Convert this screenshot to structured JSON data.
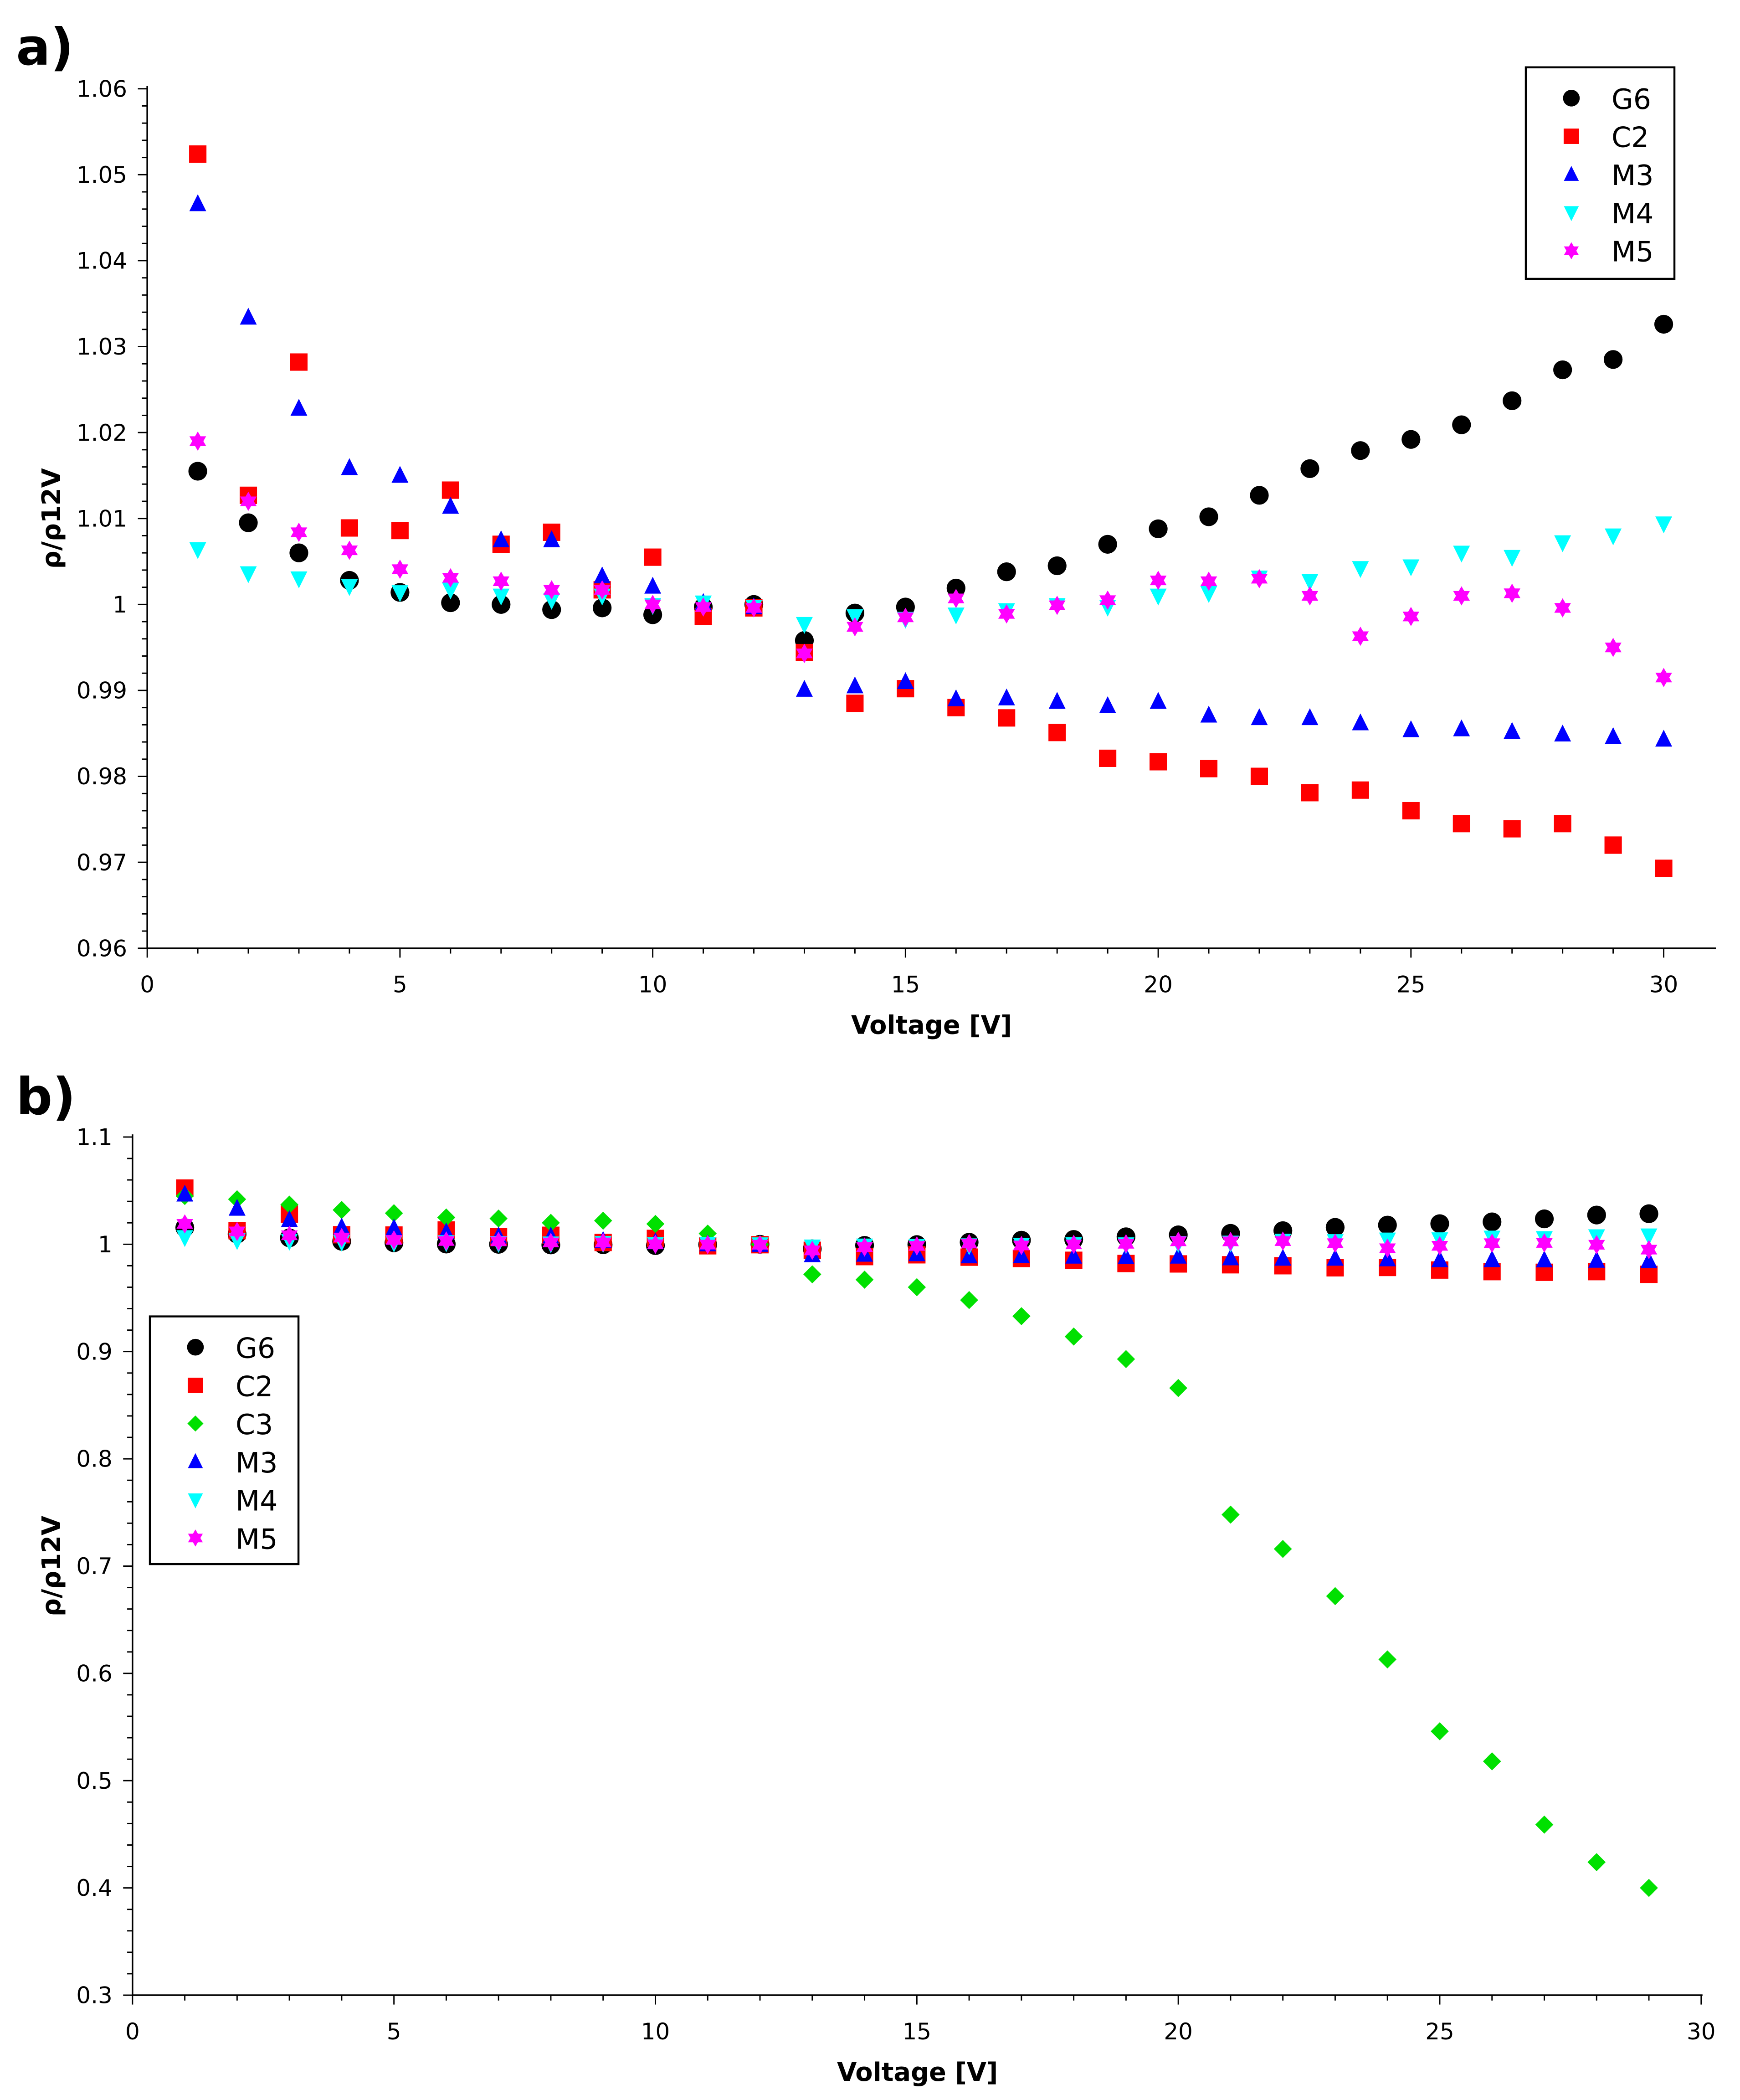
{
  "chart_data": [
    {
      "type": "scatter",
      "panel_label": "a)",
      "xlabel": "Voltage [V]",
      "ylabel": "ρ/ρ12V",
      "xlim": [
        0,
        30
      ],
      "ylim": [
        0.96,
        1.06
      ],
      "xticks": [
        "0",
        "5",
        "10",
        "15",
        "20",
        "25",
        "30"
      ],
      "yticks": [
        "1.06",
        "1.05",
        "1.04",
        "1.03",
        "1.02",
        "1.01",
        "1",
        "0.99",
        "0.98",
        "0.97",
        "0.96"
      ],
      "grid": false,
      "legend_position": "top-right",
      "x": [
        1,
        2,
        3,
        4,
        5,
        6,
        7,
        8,
        9,
        10,
        11,
        12,
        13,
        14,
        15,
        16,
        17,
        18,
        19,
        20,
        21,
        22,
        23,
        24,
        25,
        26,
        27,
        28,
        29,
        30
      ],
      "series": [
        {
          "name": "G6",
          "marker": "circle",
          "color": "#000000",
          "values": [
            1.0155,
            1.0095,
            1.006,
            1.0028,
            1.0014,
            1.0002,
            1.0,
            0.9994,
            0.9996,
            0.9988,
            0.9997,
            1.0,
            0.9958,
            0.999,
            0.9997,
            1.0019,
            1.0038,
            1.0045,
            1.007,
            1.0088,
            1.0102,
            1.0127,
            1.0158,
            1.0179,
            1.0192,
            1.0209,
            1.0237,
            1.0273,
            1.0285,
            1.0326
          ]
        },
        {
          "name": "C2",
          "marker": "square",
          "color": "#ff0000",
          "values": [
            1.0524,
            1.0127,
            1.0282,
            1.0089,
            1.0086,
            1.0133,
            1.007,
            1.0084,
            1.0017,
            1.0055,
            0.9986,
            0.9996,
            0.9944,
            0.9885,
            0.9902,
            0.988,
            0.9868,
            0.9851,
            0.9821,
            0.9817,
            0.9809,
            0.98,
            0.9781,
            0.9784,
            0.976,
            0.9745,
            0.9739,
            0.9745,
            0.972,
            0.9693
          ]
        },
        {
          "name": "M3",
          "marker": "triangle-up",
          "color": "#0000ff",
          "values": [
            1.0466,
            1.0334,
            1.0228,
            1.0159,
            1.015,
            1.0114,
            1.0075,
            1.0075,
            1.0033,
            1.0021,
            1.0002,
            0.9997,
            0.9901,
            0.9905,
            0.991,
            0.989,
            0.9891,
            0.9887,
            0.9882,
            0.9887,
            0.9871,
            0.9868,
            0.9868,
            0.9862,
            0.9854,
            0.9855,
            0.9852,
            0.9849,
            0.9846,
            0.9843
          ]
        },
        {
          "name": "M4",
          "marker": "triangle-down",
          "color": "#00ffff",
          "values": [
            1.0064,
            1.0036,
            1.003,
            1.0021,
            1.0014,
            1.0017,
            1.001,
            1.0005,
            1.001,
            0.9999,
            1.0002,
            0.9997,
            0.9977,
            0.9986,
            0.9983,
            0.9988,
            0.9993,
            0.9999,
            0.9997,
            1.001,
            1.0013,
            1.0031,
            1.0027,
            1.0042,
            1.0044,
            1.006,
            1.0055,
            1.0072,
            1.008,
            1.0094
          ]
        },
        {
          "name": "M5",
          "marker": "star",
          "color": "#ff00ff",
          "values": [
            1.019,
            1.012,
            1.0084,
            1.0063,
            1.0041,
            1.0031,
            1.0027,
            1.0017,
            1.0017,
            1.0,
            0.9997,
            0.9996,
            0.9943,
            0.9974,
            0.9985,
            1.0007,
            0.9989,
            0.9999,
            1.0005,
            1.0028,
            1.0027,
            1.003,
            1.001,
            0.9963,
            0.9986,
            1.001,
            1.0013,
            0.9996,
            0.995,
            0.9915
          ]
        }
      ]
    },
    {
      "type": "scatter",
      "panel_label": "b)",
      "xlabel": "Voltage [V]",
      "ylabel": "ρ/ρ12V",
      "xlim": [
        0,
        30
      ],
      "ylim": [
        0.3,
        1.1
      ],
      "xticks": [
        "0",
        "5",
        "10",
        "15",
        "20",
        "25",
        "30"
      ],
      "yticks": [
        "1.1",
        "1",
        "0.9",
        "0.8",
        "0.7",
        "0.6",
        "0.5",
        "0.4",
        "0.3"
      ],
      "grid": false,
      "legend_position": "left",
      "x": [
        1,
        2,
        3,
        4,
        5,
        6,
        7,
        8,
        9,
        10,
        11,
        12,
        13,
        14,
        15,
        16,
        17,
        18,
        19,
        20,
        21,
        22,
        23,
        24,
        25,
        26,
        27,
        28,
        29
      ],
      "series": [
        {
          "name": "G6",
          "marker": "circle",
          "color": "#000000",
          "values": [
            1.0155,
            1.0095,
            1.006,
            1.0028,
            1.0014,
            1.0002,
            1.0,
            0.9994,
            0.9996,
            0.9988,
            0.9997,
            1.0,
            0.9958,
            0.999,
            0.9997,
            1.0019,
            1.0038,
            1.0045,
            1.007,
            1.0088,
            1.0102,
            1.0127,
            1.0158,
            1.0179,
            1.0192,
            1.0209,
            1.0237,
            1.0273,
            1.0285
          ]
        },
        {
          "name": "C2",
          "marker": "square",
          "color": "#ff0000",
          "values": [
            1.0524,
            1.0127,
            1.0282,
            1.0089,
            1.0086,
            1.0133,
            1.007,
            1.0084,
            1.0017,
            1.0055,
            0.9986,
            0.9996,
            0.9944,
            0.9885,
            0.9902,
            0.988,
            0.9868,
            0.9851,
            0.9821,
            0.9817,
            0.9809,
            0.98,
            0.9781,
            0.9784,
            0.976,
            0.9745,
            0.9739,
            0.9745,
            0.972
          ]
        },
        {
          "name": "C3",
          "marker": "diamond",
          "color": "#00e000",
          "values": [
            1.045,
            1.042,
            1.037,
            1.032,
            1.029,
            1.025,
            1.024,
            1.02,
            1.022,
            1.019,
            1.01,
            1.0,
            0.972,
            0.967,
            0.96,
            0.948,
            0.933,
            0.914,
            0.893,
            0.866,
            0.748,
            0.716,
            0.672,
            0.613,
            0.546,
            0.518,
            0.459,
            0.424,
            0.4
          ]
        },
        {
          "name": "M3",
          "marker": "triangle-up",
          "color": "#0000ff",
          "values": [
            1.0466,
            1.0334,
            1.0228,
            1.0159,
            1.015,
            1.0114,
            1.0075,
            1.0075,
            1.0033,
            1.0021,
            1.0002,
            0.9997,
            0.9901,
            0.9905,
            0.991,
            0.989,
            0.9891,
            0.9887,
            0.9882,
            0.9887,
            0.9871,
            0.9868,
            0.9868,
            0.9862,
            0.9854,
            0.9855,
            0.9852,
            0.9849,
            0.9846
          ]
        },
        {
          "name": "M4",
          "marker": "triangle-down",
          "color": "#00ffff",
          "values": [
            1.0064,
            1.0036,
            1.003,
            1.0021,
            1.0014,
            1.0017,
            1.001,
            1.0005,
            1.001,
            0.9999,
            1.0002,
            0.9997,
            0.9977,
            0.9986,
            0.9983,
            0.9988,
            0.9993,
            0.9999,
            0.9997,
            1.001,
            1.0013,
            1.0031,
            1.0027,
            1.0042,
            1.0044,
            1.006,
            1.0055,
            1.0072,
            1.008
          ]
        },
        {
          "name": "M5",
          "marker": "star",
          "color": "#ff00ff",
          "values": [
            1.019,
            1.012,
            1.0084,
            1.0063,
            1.0041,
            1.0031,
            1.0027,
            1.0017,
            1.0017,
            1.0,
            0.9997,
            0.9996,
            0.9943,
            0.9974,
            0.9985,
            1.0007,
            0.9989,
            0.9999,
            1.0005,
            1.0028,
            1.0027,
            1.003,
            1.001,
            0.9963,
            0.9986,
            1.001,
            1.0013,
            0.9996,
            0.995
          ]
        }
      ]
    }
  ]
}
